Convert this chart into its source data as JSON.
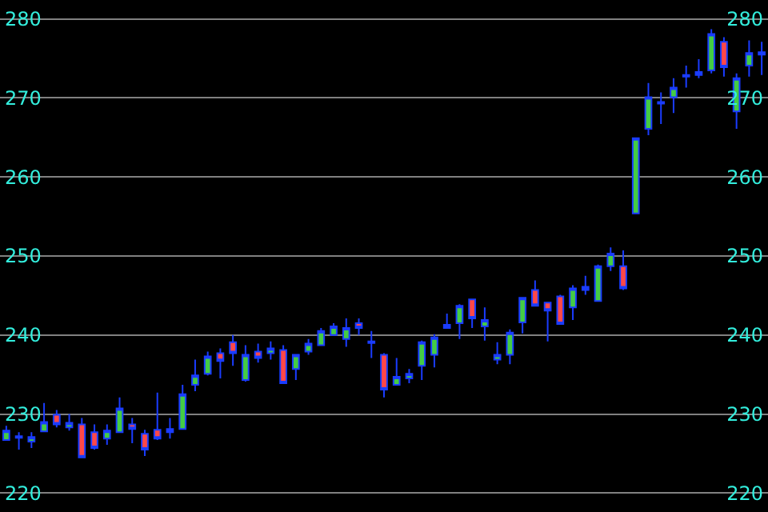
{
  "chart_data": {
    "type": "candlestick",
    "categories": [
      null,
      null,
      null,
      null,
      null,
      null,
      null,
      null,
      null,
      null,
      null,
      null,
      null,
      null,
      null,
      null,
      null,
      null,
      null,
      null,
      null,
      null,
      null,
      null,
      null,
      null,
      null,
      null,
      null,
      null,
      null,
      null,
      null,
      null,
      null,
      null,
      null,
      null,
      null,
      null,
      null,
      null,
      null,
      null,
      null,
      null,
      null,
      null,
      null,
      null,
      null,
      null,
      null,
      null,
      null,
      null,
      null,
      null,
      null,
      null,
      null
    ],
    "ohlc": [
      [
        226.7,
        228.5,
        226.6,
        227.9
      ],
      [
        227.2,
        227.7,
        225.5,
        227.0
      ],
      [
        226.5,
        227.7,
        225.7,
        227.1
      ],
      [
        227.8,
        231.4,
        227.7,
        229.0
      ],
      [
        229.9,
        230.5,
        228.3,
        228.7
      ],
      [
        228.3,
        230.0,
        227.9,
        228.9
      ],
      [
        228.7,
        229.5,
        224.5,
        224.5
      ],
      [
        227.7,
        228.7,
        225.5,
        225.7
      ],
      [
        226.9,
        228.7,
        226.1,
        227.9
      ],
      [
        227.7,
        232.1,
        227.7,
        230.7
      ],
      [
        228.7,
        229.5,
        226.3,
        228.1
      ],
      [
        227.5,
        228.0,
        224.7,
        225.5
      ],
      [
        228.0,
        232.7,
        226.7,
        226.9
      ],
      [
        227.7,
        229.5,
        226.9,
        228.1
      ],
      [
        228.1,
        233.7,
        228.1,
        232.5
      ],
      [
        233.7,
        236.9,
        232.9,
        234.9
      ],
      [
        235.1,
        237.9,
        234.9,
        237.3
      ],
      [
        237.7,
        238.3,
        234.5,
        236.7
      ],
      [
        239.1,
        240.0,
        236.1,
        237.7
      ],
      [
        234.3,
        238.7,
        234.1,
        237.5
      ],
      [
        237.9,
        238.9,
        236.5,
        237.1
      ],
      [
        237.7,
        239.2,
        236.9,
        238.3
      ],
      [
        238.1,
        238.7,
        233.9,
        233.9
      ],
      [
        235.7,
        237.5,
        234.3,
        237.5
      ],
      [
        237.9,
        239.5,
        237.5,
        238.9
      ],
      [
        238.7,
        240.9,
        238.7,
        240.5
      ],
      [
        240.0,
        241.5,
        240.0,
        241.1
      ],
      [
        239.5,
        242.1,
        238.5,
        240.9
      ],
      [
        241.5,
        242.1,
        240.0,
        240.9
      ],
      [
        239.0,
        240.5,
        237.1,
        239.2
      ],
      [
        237.5,
        237.7,
        232.1,
        233.1
      ],
      [
        233.7,
        237.1,
        233.7,
        234.7
      ],
      [
        234.5,
        235.7,
        233.9,
        235.1
      ],
      [
        236.1,
        239.3,
        234.3,
        239.1
      ],
      [
        237.5,
        240.1,
        235.9,
        239.7
      ],
      [
        241.3,
        242.7,
        240.9,
        240.9
      ],
      [
        241.5,
        243.9,
        239.5,
        243.7
      ],
      [
        244.5,
        244.5,
        240.9,
        242.1
      ],
      [
        241.1,
        243.5,
        239.3,
        241.9
      ],
      [
        236.9,
        239.1,
        236.3,
        237.5
      ],
      [
        237.5,
        240.7,
        236.3,
        240.3
      ],
      [
        241.6,
        244.7,
        240.2,
        244.7
      ],
      [
        245.7,
        246.9,
        243.7,
        243.7
      ],
      [
        244.1,
        244.1,
        239.2,
        243.1
      ],
      [
        244.9,
        245.1,
        241.3,
        241.4
      ],
      [
        243.5,
        246.3,
        241.9,
        245.9
      ],
      [
        246.1,
        247.5,
        245.1,
        245.7
      ],
      [
        244.3,
        248.9,
        244.2,
        248.7
      ],
      [
        248.7,
        251.1,
        248.1,
        250.3
      ],
      [
        248.7,
        250.7,
        245.7,
        245.9
      ],
      [
        255.4,
        265.0,
        255.4,
        264.9
      ],
      [
        266.1,
        271.9,
        265.3,
        270.1
      ],
      [
        269.3,
        270.7,
        266.7,
        269.5
      ],
      [
        270.1,
        272.5,
        268.1,
        271.3
      ],
      [
        272.9,
        274.1,
        271.3,
        272.7
      ],
      [
        272.9,
        274.9,
        272.5,
        273.3
      ],
      [
        273.5,
        278.7,
        273.1,
        278.1
      ],
      [
        277.1,
        277.7,
        272.7,
        273.9
      ],
      [
        268.3,
        273.1,
        266.1,
        272.5
      ],
      [
        274.1,
        277.3,
        272.7,
        275.7
      ],
      [
        275.8,
        277.1,
        272.9,
        275.5
      ]
    ],
    "ylim": [
      217.6,
      282.4
    ],
    "yticks": [
      220,
      230,
      240,
      250,
      260,
      270,
      280
    ],
    "y2lim": [
      217.6,
      282.4
    ],
    "y2ticks": [
      220,
      230,
      240,
      250,
      260,
      270,
      280
    ],
    "grid": "y",
    "tick_labels": "y"
  }
}
